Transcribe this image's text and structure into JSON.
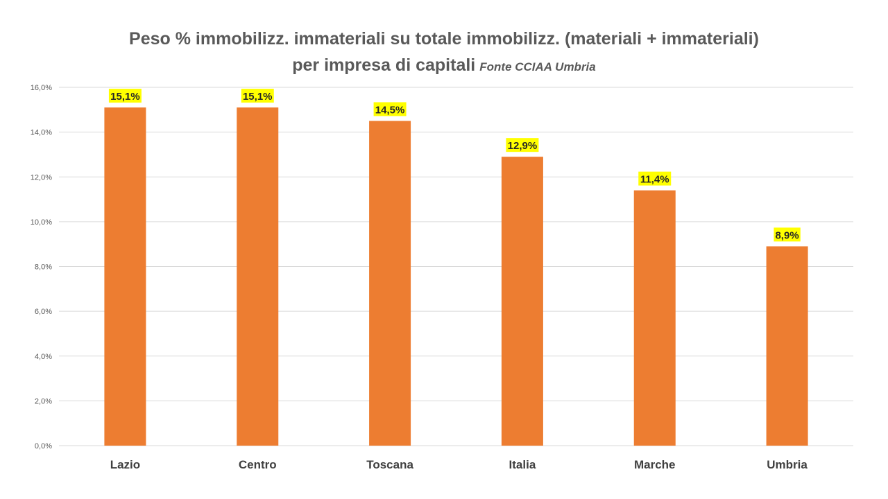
{
  "chart_data": {
    "type": "bar",
    "title_line1": "Peso % immobilizz. immateriali su totale immobilizz. (materiali + immateriali)",
    "title_line2": "per impresa di capitali",
    "title_source": "Fonte CCIAA Umbria",
    "categories": [
      "Lazio",
      "Centro",
      "Toscana",
      "Italia",
      "Marche",
      "Umbria"
    ],
    "values": [
      15.1,
      15.1,
      14.5,
      12.9,
      11.4,
      8.9
    ],
    "data_labels": [
      "15,1%",
      "15,1%",
      "14,5%",
      "12,9%",
      "11,4%",
      "8,9%"
    ],
    "y_ticks": [
      0,
      2,
      4,
      6,
      8,
      10,
      12,
      14,
      16
    ],
    "y_tick_labels": [
      "0,0%",
      "2,0%",
      "4,0%",
      "6,0%",
      "8,0%",
      "10,0%",
      "12,0%",
      "14,0%",
      "16,0%"
    ],
    "ylim": [
      0,
      16
    ],
    "grid": true,
    "legend": "none",
    "xlabel": "",
    "ylabel": "",
    "colors": {
      "bar": "#ED7D31",
      "label_highlight": "#FFFF00",
      "grid": "#D9D9D9",
      "title": "#595959"
    }
  }
}
